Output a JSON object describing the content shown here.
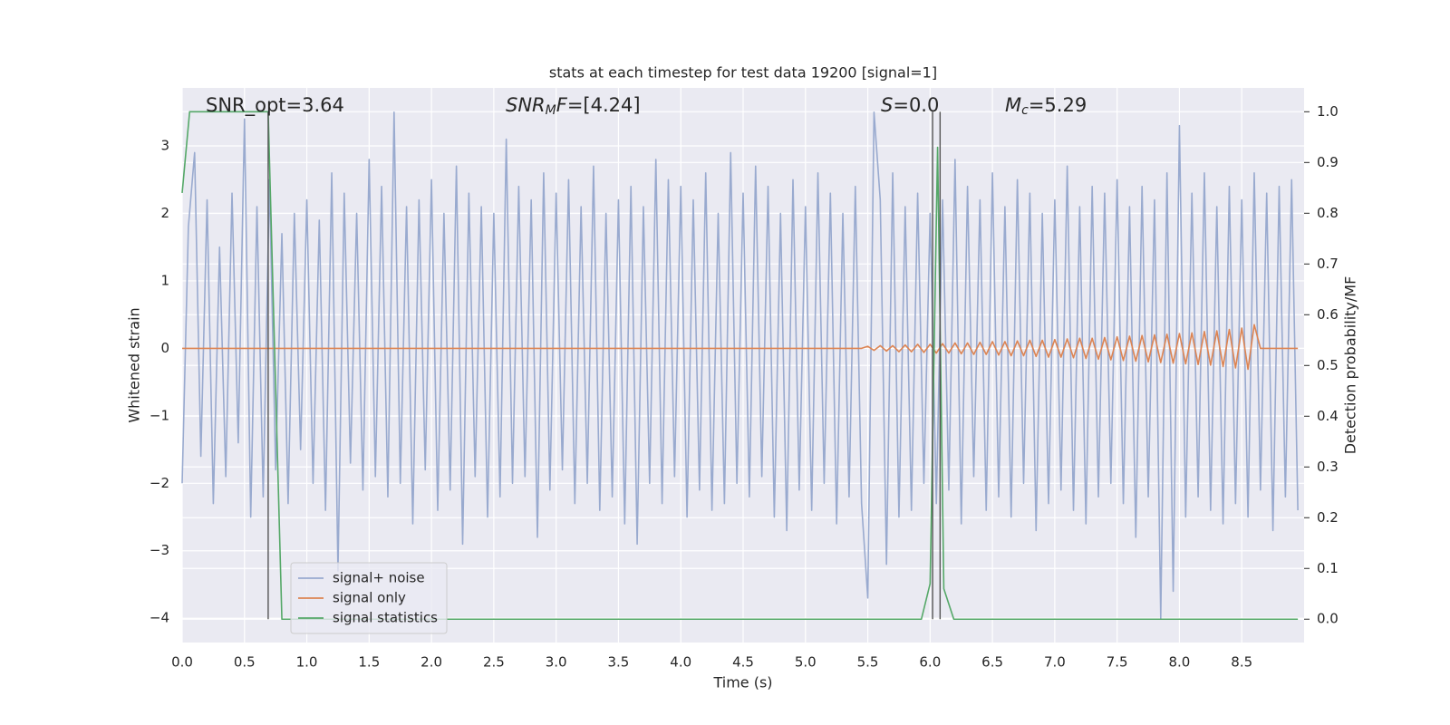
{
  "chart_data": {
    "type": "line",
    "title": "stats at each timestep for test data 19200 [signal=1]",
    "x_label": "Time (s)",
    "y_label": "Whitened strain",
    "y2_label": "Detection probability/MF",
    "xlim": [
      0,
      9.0
    ],
    "ylim": [
      -4.36,
      3.86
    ],
    "y2lim": [
      -0.046,
      1.047
    ],
    "xticks": [
      {
        "value": 0,
        "label": "0.0"
      },
      {
        "value": 0.5,
        "label": "0.5"
      },
      {
        "value": 1,
        "label": "1.0"
      },
      {
        "value": 1.5,
        "label": "1.5"
      },
      {
        "value": 2,
        "label": "2.0"
      },
      {
        "value": 2.5,
        "label": "2.5"
      },
      {
        "value": 3,
        "label": "3.0"
      },
      {
        "value": 3.5,
        "label": "3.5"
      },
      {
        "value": 4,
        "label": "4.0"
      },
      {
        "value": 4.5,
        "label": "4.5"
      },
      {
        "value": 5,
        "label": "5.0"
      },
      {
        "value": 5.5,
        "label": "5.5"
      },
      {
        "value": 6,
        "label": "6.0"
      },
      {
        "value": 6.5,
        "label": "6.5"
      },
      {
        "value": 7,
        "label": "7.0"
      },
      {
        "value": 7.5,
        "label": "7.5"
      },
      {
        "value": 8,
        "label": "8.0"
      },
      {
        "value": 8.5,
        "label": "8.5"
      }
    ],
    "yticks": [
      {
        "value": -4,
        "label": "−4"
      },
      {
        "value": -3,
        "label": "−3"
      },
      {
        "value": -2,
        "label": "−2"
      },
      {
        "value": -1,
        "label": "−1"
      },
      0,
      1,
      2,
      3
    ],
    "y2ticks": [
      {
        "value": 0,
        "label": "0.0"
      },
      {
        "value": 0.1,
        "label": "0.1"
      },
      {
        "value": 0.2,
        "label": "0.2"
      },
      {
        "value": 0.3,
        "label": "0.3"
      },
      {
        "value": 0.4,
        "label": "0.4"
      },
      {
        "value": 0.5,
        "label": "0.5"
      },
      {
        "value": 0.6,
        "label": "0.6"
      },
      {
        "value": 0.7,
        "label": "0.7"
      },
      {
        "value": 0.8,
        "label": "0.8"
      },
      {
        "value": 0.9,
        "label": "0.9"
      },
      {
        "value": 1,
        "label": "1.0"
      }
    ],
    "grid": true,
    "legend_loc": "lower left",
    "series": [
      {
        "name": "signal+ noise",
        "color": "#99aacf",
        "x": [
          0,
          0.05,
          0.1,
          0.15,
          0.2,
          0.25,
          0.3,
          0.35,
          0.4,
          0.45,
          0.5,
          0.55,
          0.6,
          0.65,
          0.7,
          0.75,
          0.8,
          0.85,
          0.9,
          0.95,
          1,
          1.05,
          1.1,
          1.15,
          1.2,
          1.25,
          1.3,
          1.35,
          1.4,
          1.45,
          1.5,
          1.55,
          1.6,
          1.65,
          1.7,
          1.75,
          1.8,
          1.85,
          1.9,
          1.95,
          2,
          2.05,
          2.1,
          2.15,
          2.2,
          2.25,
          2.3,
          2.35,
          2.4,
          2.45,
          2.5,
          2.55,
          2.6,
          2.65,
          2.7,
          2.75,
          2.8,
          2.85,
          2.9,
          2.95,
          3,
          3.05,
          3.1,
          3.15,
          3.2,
          3.25,
          3.3,
          3.35,
          3.4,
          3.45,
          3.5,
          3.55,
          3.6,
          3.65,
          3.7,
          3.75,
          3.8,
          3.85,
          3.9,
          3.95,
          4,
          4.05,
          4.1,
          4.15,
          4.2,
          4.25,
          4.3,
          4.35,
          4.4,
          4.45,
          4.5,
          4.55,
          4.6,
          4.65,
          4.7,
          4.75,
          4.8,
          4.85,
          4.9,
          4.95,
          5,
          5.05,
          5.1,
          5.15,
          5.2,
          5.25,
          5.3,
          5.35,
          5.4,
          5.45,
          5.5,
          5.55,
          5.6,
          5.65,
          5.7,
          5.75,
          5.8,
          5.85,
          5.9,
          5.95,
          6,
          6.05,
          6.1,
          6.15,
          6.2,
          6.25,
          6.3,
          6.35,
          6.4,
          6.45,
          6.5,
          6.55,
          6.6,
          6.65,
          6.7,
          6.75,
          6.8,
          6.85,
          6.9,
          6.95,
          7,
          7.05,
          7.1,
          7.15,
          7.2,
          7.25,
          7.3,
          7.35,
          7.4,
          7.45,
          7.5,
          7.55,
          7.6,
          7.65,
          7.7,
          7.75,
          7.8,
          7.85,
          7.9,
          7.95,
          8,
          8.05,
          8.1,
          8.15,
          8.2,
          8.25,
          8.3,
          8.35,
          8.4,
          8.45,
          8.5,
          8.55,
          8.6,
          8.65,
          8.7,
          8.75,
          8.8,
          8.85,
          8.9,
          8.95
        ],
        "values": [
          -2.0,
          1.8,
          2.9,
          -1.6,
          2.2,
          -2.3,
          1.5,
          -1.9,
          2.3,
          -1.4,
          3.4,
          -2.5,
          2.1,
          -2.2,
          2.5,
          -1.8,
          1.7,
          -2.3,
          2.0,
          -1.5,
          2.2,
          -2.0,
          1.9,
          -2.4,
          2.6,
          -3.3,
          2.3,
          -1.7,
          2.0,
          -2.1,
          2.8,
          -1.9,
          2.4,
          -2.2,
          3.5,
          -2.0,
          2.1,
          -2.6,
          2.2,
          -1.8,
          2.5,
          -2.4,
          2.0,
          -2.1,
          2.7,
          -2.9,
          2.3,
          -1.9,
          2.1,
          -2.5,
          2.0,
          -2.2,
          3.1,
          -2.0,
          2.4,
          -1.9,
          2.2,
          -2.8,
          2.6,
          -2.1,
          2.3,
          -1.8,
          2.5,
          -2.3,
          2.1,
          -2.0,
          2.7,
          -2.4,
          2.0,
          -2.2,
          2.2,
          -2.6,
          2.4,
          -2.9,
          2.1,
          -2.0,
          2.8,
          -2.3,
          2.5,
          -1.9,
          2.4,
          -2.5,
          2.2,
          -2.1,
          2.6,
          -2.4,
          2.0,
          -2.3,
          2.9,
          -2.0,
          2.3,
          -2.2,
          2.7,
          -1.9,
          2.4,
          -2.5,
          2.0,
          -2.7,
          2.5,
          -2.1,
          2.1,
          -2.4,
          2.6,
          -2.0,
          2.3,
          -2.6,
          2.0,
          -2.2,
          2.4,
          -2.3,
          -3.7,
          3.5,
          2.2,
          -3.2,
          2.6,
          -2.5,
          2.1,
          -2.4,
          2.3,
          -2.0,
          2.0,
          -2.3,
          2.2,
          -2.1,
          2.8,
          -2.6,
          2.4,
          -1.9,
          2.2,
          -2.4,
          2.6,
          -2.2,
          2.1,
          -2.5,
          2.5,
          -2.0,
          2.3,
          -2.7,
          2.0,
          -2.3,
          2.2,
          -2.1,
          2.7,
          -2.4,
          2.1,
          -2.6,
          2.4,
          -2.2,
          2.3,
          -2.0,
          2.5,
          -2.3,
          2.1,
          -2.8,
          2.4,
          -2.2,
          2.2,
          -4.0,
          2.6,
          -3.6,
          3.3,
          -2.5,
          2.3,
          -2.2,
          2.6,
          -2.4,
          2.1,
          -2.6,
          2.4,
          -2.3,
          2.2,
          -2.5,
          2.6,
          -2.1,
          2.3,
          -2.7,
          2.4,
          -2.2,
          2.5,
          -2.4
        ]
      },
      {
        "name": "signal only",
        "color": "#dd8452",
        "x": [
          0,
          5.45,
          5.5,
          5.55,
          5.6,
          5.65,
          5.7,
          5.75,
          5.8,
          5.85,
          5.9,
          5.95,
          6,
          6.05,
          6.1,
          6.15,
          6.2,
          6.25,
          6.3,
          6.35,
          6.4,
          6.45,
          6.5,
          6.55,
          6.6,
          6.65,
          6.7,
          6.75,
          6.8,
          6.85,
          6.9,
          6.95,
          7,
          7.05,
          7.1,
          7.15,
          7.2,
          7.25,
          7.3,
          7.35,
          7.4,
          7.45,
          7.5,
          7.55,
          7.6,
          7.65,
          7.7,
          7.75,
          7.8,
          7.85,
          7.9,
          7.95,
          8,
          8.05,
          8.1,
          8.15,
          8.2,
          8.25,
          8.3,
          8.35,
          8.4,
          8.45,
          8.5,
          8.55,
          8.6,
          8.65,
          8.95
        ],
        "values": [
          0,
          0,
          0.03,
          -0.03,
          0.04,
          -0.04,
          0.04,
          -0.05,
          0.05,
          -0.05,
          0.06,
          -0.06,
          0.06,
          -0.07,
          0.07,
          -0.07,
          0.08,
          -0.08,
          0.08,
          -0.09,
          0.09,
          -0.09,
          0.1,
          -0.1,
          0.1,
          -0.11,
          0.11,
          -0.11,
          0.12,
          -0.12,
          0.12,
          -0.13,
          0.13,
          -0.13,
          0.14,
          -0.14,
          0.15,
          -0.15,
          0.15,
          -0.16,
          0.16,
          -0.17,
          0.17,
          -0.18,
          0.18,
          -0.19,
          0.19,
          -0.2,
          0.2,
          -0.21,
          0.21,
          -0.22,
          0.22,
          -0.23,
          0.23,
          -0.24,
          0.25,
          -0.25,
          0.26,
          -0.27,
          0.28,
          -0.29,
          0.3,
          -0.31,
          0.35,
          0,
          0
        ]
      },
      {
        "name": "signal statistics",
        "color": "#55a868",
        "axis": "y2",
        "x": [
          0,
          0.06,
          0.69,
          0.8,
          5.93,
          6.0,
          6.06,
          6.11,
          6.19,
          8.95
        ],
        "values": [
          0.84,
          1.0,
          1.0,
          0.0,
          0.0,
          0.07,
          0.93,
          0.06,
          0.0,
          0.0
        ]
      }
    ],
    "vlines": {
      "color": "#555555",
      "axis": "y2",
      "x": [
        0.69,
        6.02,
        6.08
      ],
      "ymin": 0,
      "ymax": 1
    },
    "annotations": [
      [
        {
          "text": "SNR_opt=3.64",
          "style": "normal"
        }
      ],
      [
        {
          "text": "SNR",
          "style": "italic"
        },
        {
          "text": "M",
          "style": "sub"
        },
        {
          "text": "F",
          "style": "italic"
        },
        {
          "text": "=[4.24]",
          "style": "normal"
        }
      ],
      [
        {
          "text": "S",
          "style": "italic"
        },
        {
          "text": "=0.0",
          "style": "normal"
        }
      ],
      [
        {
          "text": "M",
          "style": "italic"
        },
        {
          "text": "c",
          "style": "sub"
        },
        {
          "text": "=5.29",
          "style": "normal"
        }
      ]
    ]
  }
}
